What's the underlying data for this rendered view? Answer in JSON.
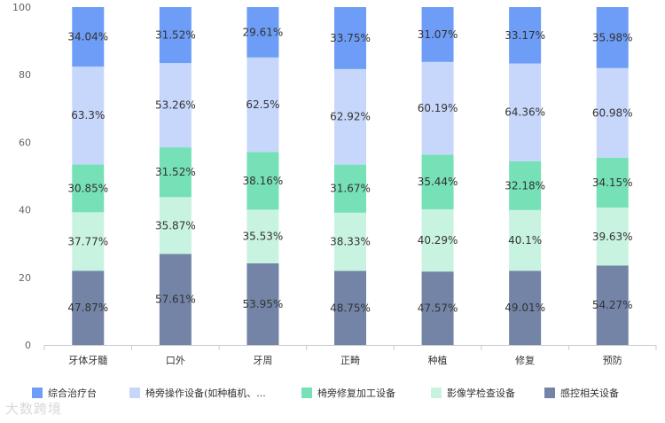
{
  "chart_data": {
    "type": "bar",
    "stacked": true,
    "categories": [
      "牙体牙髓",
      "口外",
      "牙周",
      "正畸",
      "种植",
      "修复",
      "预防"
    ],
    "ylim": [
      0,
      100
    ],
    "yticks": [
      0,
      20,
      40,
      60,
      80,
      100
    ],
    "grid": false,
    "legend_position": "bottom",
    "series": [
      {
        "name": "感控相关设备",
        "color": "#7384a6",
        "labels": [
          "47.87%",
          "57.61%",
          "53.95%",
          "48.75%",
          "47.57%",
          "49.01%",
          "54.27%"
        ],
        "values": [
          21.96,
          26.96,
          24.15,
          21.91,
          21.74,
          21.96,
          23.5
        ]
      },
      {
        "name": "影像学检查设备",
        "color": "#c9f3e1",
        "labels": [
          "37.77%",
          "35.87%",
          "35.53%",
          "38.33%",
          "40.29%",
          "40.1%",
          "39.63%"
        ],
        "values": [
          17.33,
          16.79,
          15.9,
          17.23,
          18.41,
          17.97,
          17.16
        ]
      },
      {
        "name": "椅旁修复加工设备",
        "color": "#76e0b7",
        "labels": [
          "30.85%",
          "31.52%",
          "38.16%",
          "31.67%",
          "35.44%",
          "32.18%",
          "34.15%"
        ],
        "values": [
          14.16,
          14.75,
          17.08,
          14.24,
          16.2,
          14.42,
          14.79
        ]
      },
      {
        "name": "椅旁操作设备(如种植机、...",
        "color": "#c7d7fc",
        "labels": [
          "63.3%",
          "53.26%",
          "62.5%",
          "62.92%",
          "60.19%",
          "64.36%",
          "60.98%"
        ],
        "values": [
          28.93,
          24.93,
          27.97,
          28.28,
          27.42,
          28.97,
          26.5
        ]
      },
      {
        "name": "综合治疗台",
        "color": "#6d9df6",
        "labels": [
          "34.04%",
          "31.52%",
          "29.61%",
          "33.75%",
          "31.07%",
          "33.17%",
          "35.98%"
        ],
        "values": [
          17.62,
          16.57,
          14.9,
          18.34,
          16.23,
          16.68,
          18.05
        ]
      }
    ],
    "legend_order": [
      4,
      3,
      2,
      1,
      0
    ]
  },
  "watermark": "大数跨境"
}
